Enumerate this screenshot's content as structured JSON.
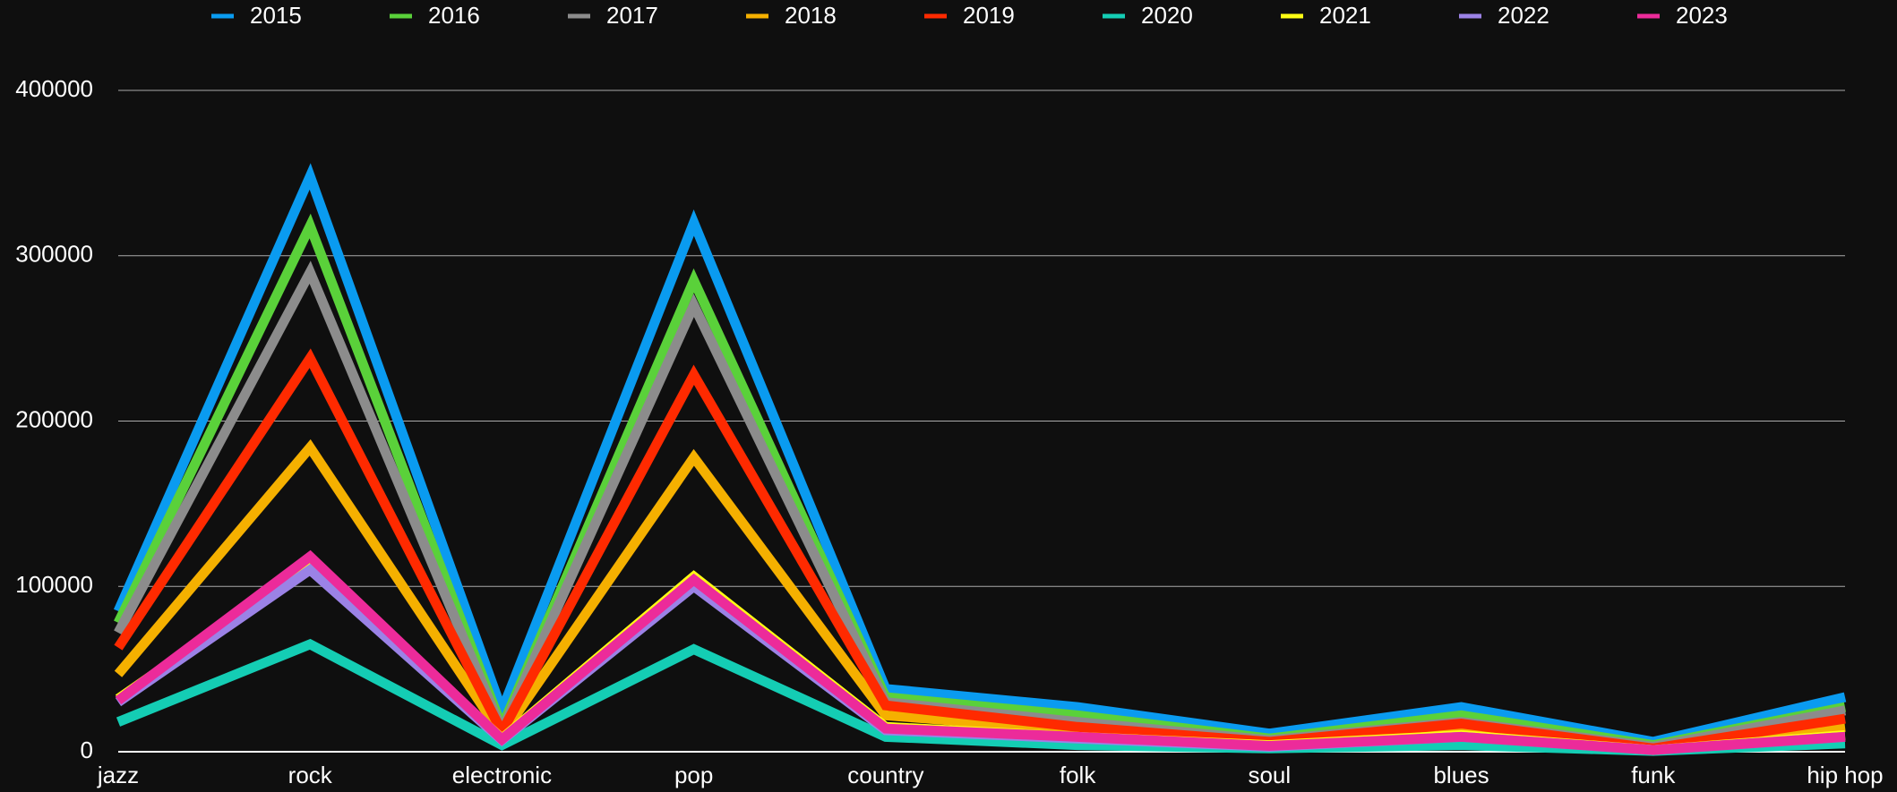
{
  "chart_data": {
    "type": "line",
    "categories": [
      "jazz",
      "rock",
      "electronic",
      "pop",
      "country",
      "folk",
      "soul",
      "blues",
      "funk",
      "hip hop"
    ],
    "series": [
      {
        "name": "2015",
        "color": "#0a9bf0",
        "values": [
          85000,
          348000,
          25000,
          320000,
          38000,
          27000,
          11000,
          27000,
          6000,
          33000
        ]
      },
      {
        "name": "2016",
        "color": "#5ad13a",
        "values": [
          78000,
          318000,
          15000,
          285000,
          33000,
          22000,
          8000,
          22000,
          4000,
          27000
        ]
      },
      {
        "name": "2017",
        "color": "#8c8c8c",
        "values": [
          72000,
          290000,
          13000,
          270000,
          30000,
          18000,
          7000,
          18000,
          3000,
          25000
        ]
      },
      {
        "name": "2018",
        "color": "#f5b000",
        "values": [
          47000,
          184000,
          10000,
          178000,
          22000,
          13000,
          5000,
          15000,
          2000,
          15000
        ]
      },
      {
        "name": "2019",
        "color": "#ff2a00",
        "values": [
          63000,
          238000,
          12000,
          228000,
          28000,
          15000,
          6000,
          17000,
          2000,
          20000
        ]
      },
      {
        "name": "2020",
        "color": "#14cdb4",
        "values": [
          18000,
          65000,
          4000,
          62000,
          9000,
          4000,
          2000,
          4000,
          500,
          5000
        ]
      },
      {
        "name": "2021",
        "color": "#ffff14",
        "values": [
          32000,
          113000,
          8000,
          106000,
          15000,
          9000,
          4000,
          10000,
          1000,
          10000
        ]
      },
      {
        "name": "2022",
        "color": "#9b82e6",
        "values": [
          30000,
          110000,
          7000,
          100000,
          13000,
          8000,
          3000,
          9000,
          1000,
          9000
        ]
      },
      {
        "name": "2023",
        "color": "#ec2b9a",
        "values": [
          31000,
          118000,
          7500,
          104000,
          14000,
          9000,
          3500,
          9000,
          1000,
          9000
        ]
      }
    ],
    "ylim": [
      0,
      400000
    ],
    "yticks": [
      0,
      100000,
      200000,
      300000,
      400000
    ],
    "grid": true,
    "legend": "top"
  }
}
